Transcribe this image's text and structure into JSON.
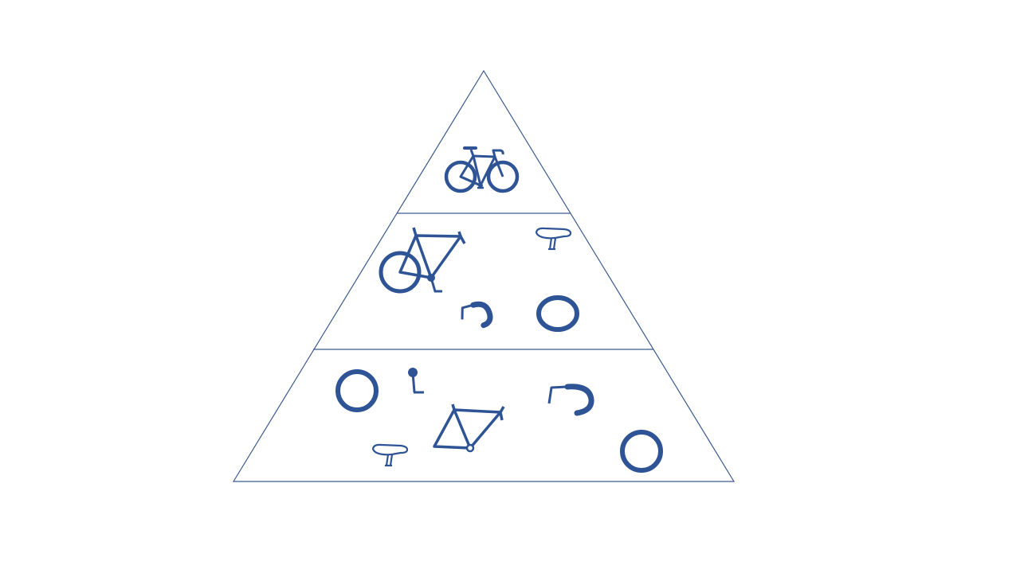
{
  "colors": {
    "background": "#ffffff",
    "outline": "#3b5a8e",
    "icon": "#2f5496",
    "icon_dark": "#1f4e9a"
  },
  "diagram": {
    "type": "pyramid",
    "tier_count": 3
  },
  "tiers": [
    {
      "name": "top",
      "icons": [
        "bicycle-icon"
      ]
    },
    {
      "name": "middle",
      "icons": [
        "bike-frame-with-wheel-icon",
        "bike-saddle-icon",
        "handlebar-icon",
        "bike-wheel-icon"
      ]
    },
    {
      "name": "bottom",
      "icons": [
        "bike-wheel-icon",
        "seat-post-icon",
        "handlebar-icon",
        "bike-frame-icon",
        "bike-saddle-icon",
        "bike-wheel-icon"
      ]
    }
  ]
}
